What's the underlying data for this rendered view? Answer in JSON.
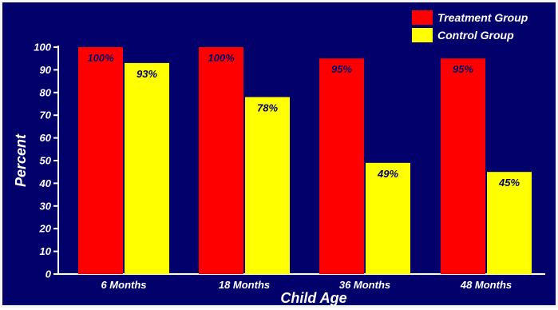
{
  "chart_data": {
    "type": "bar",
    "categories": [
      "6 Months",
      "18 Months",
      "36 Months",
      "48 Months"
    ],
    "series": [
      {
        "name": "Treatment Group",
        "values": [
          100,
          100,
          95,
          95
        ],
        "labels": [
          "100%",
          "100%",
          "95%",
          "95%"
        ],
        "color": "#ff0000"
      },
      {
        "name": "Control Group",
        "values": [
          93,
          78,
          49,
          45
        ],
        "labels": [
          "93%",
          "78%",
          "49%",
          "45%"
        ],
        "color": "#ffff00"
      }
    ],
    "title": "",
    "xlabel": "Child Age",
    "ylabel": "Percent",
    "ylim": [
      0,
      100
    ],
    "yticks": [
      "0",
      "10",
      "20",
      "30",
      "40",
      "50",
      "60",
      "70",
      "80",
      "90",
      "100"
    ],
    "grid": false,
    "legend_position": "top-right",
    "colors": {
      "background": "#02006b",
      "text": "#ffffff",
      "data_label": "#02006b",
      "axis": "#ffffff"
    }
  }
}
